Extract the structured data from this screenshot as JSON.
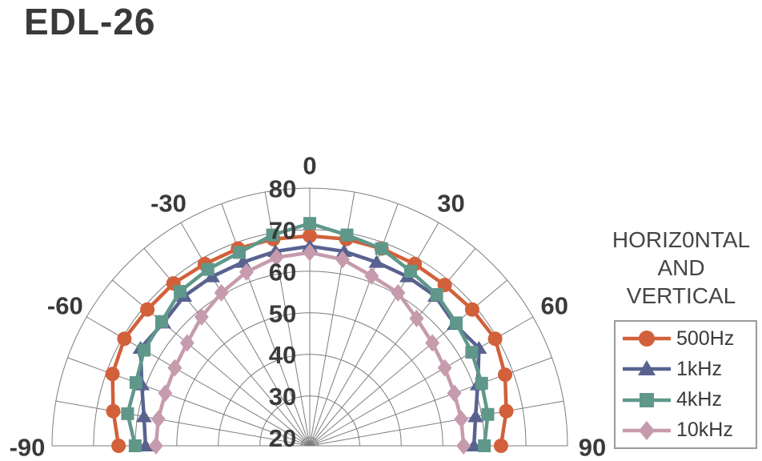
{
  "title": "EDL-26",
  "chart_data": {
    "type": "line",
    "subtype": "polar-half-circle-directivity",
    "annotation": [
      "HORIZ0NTAL",
      "AND",
      "VERTICAL"
    ],
    "angle_unit": "degrees",
    "angles": [
      -90,
      -80,
      -70,
      -60,
      -50,
      -40,
      -30,
      -20,
      -10,
      0,
      10,
      20,
      30,
      40,
      50,
      60,
      70,
      80,
      90
    ],
    "angle_ticks": [
      -90,
      -60,
      -30,
      0,
      30,
      60,
      90
    ],
    "radial_axis": {
      "ticks": [
        20,
        30,
        40,
        50,
        60,
        70,
        80
      ],
      "center_value": 18,
      "max": 80
    },
    "grid": true,
    "legend_position": "right",
    "series": [
      {
        "name": "500Hz",
        "color": "#d2603a",
        "marker": "circle",
        "values": [
          64,
          66,
          68.5,
          69.5,
          69,
          69,
          68.5,
          68.5,
          68.5,
          68.5,
          68.5,
          68.5,
          68.5,
          68.5,
          69,
          69.5,
          68,
          66,
          64
        ]
      },
      {
        "name": "1kHz",
        "color": "#59628f",
        "marker": "triangle",
        "values": [
          57.5,
          58.5,
          61,
          65,
          64,
          65,
          65,
          65,
          65.5,
          66,
          65.5,
          65,
          65,
          65,
          63.5,
          65,
          61,
          58.5,
          57.5
        ]
      },
      {
        "name": "4kHz",
        "color": "#5f988b",
        "marker": "square",
        "values": [
          60,
          62.5,
          62.5,
          64,
          64.5,
          66.5,
          67,
          67.5,
          69.5,
          71.5,
          69.5,
          68.5,
          66.5,
          65.5,
          64,
          63,
          62,
          61.5,
          60
        ]
      },
      {
        "name": "10kHz",
        "color": "#c69bad",
        "marker": "diamond",
        "values": [
          55,
          55,
          55,
          55.5,
          56.5,
          58.5,
          60.5,
          62.5,
          64,
          64.5,
          63.5,
          61.5,
          60.5,
          58,
          56.5,
          55.5,
          55,
          55,
          55
        ]
      }
    ]
  },
  "colors": {
    "grid": "#7d7d7d",
    "text": "#3a3a3a",
    "legend_border": "#9a9a9a"
  }
}
